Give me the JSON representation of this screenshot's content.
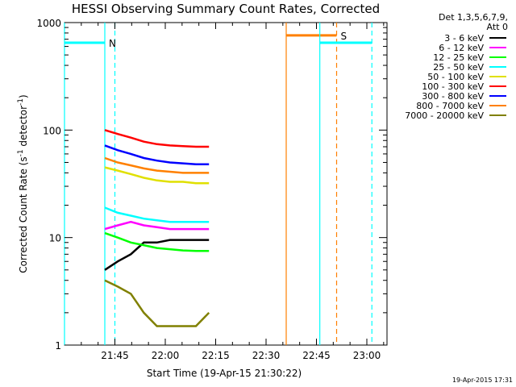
{
  "chart_data": {
    "type": "line",
    "title": "HESSI Observing Summary Count Rates, Corrected",
    "xlabel": "Start Time (19-Apr-15 21:30:22)",
    "ylabel_main": "Corrected Count Rate (s",
    "ylabel_sup1": "-1",
    "ylabel_mid": " detector",
    "ylabel_sup2": "-1",
    "ylabel_end": ")",
    "y_scale": "log",
    "ylim": [
      1,
      1000
    ],
    "xlim_minutes_from_2130": [
      0,
      96
    ],
    "x_ticks": [
      {
        "label": "21:45",
        "m": 15
      },
      {
        "label": "22:00",
        "m": 30
      },
      {
        "label": "22:15",
        "m": 45
      },
      {
        "label": "22:30",
        "m": 60
      },
      {
        "label": "22:45",
        "m": 75
      },
      {
        "label": "23:00",
        "m": 90
      }
    ],
    "y_ticks": [
      {
        "label": "1000",
        "v": 1000
      },
      {
        "label": "100",
        "v": 100
      },
      {
        "label": "10",
        "v": 10
      },
      {
        "label": "1",
        "v": 1
      }
    ],
    "legend_header_line1": "Det 1,3,5,6,7,9,",
    "legend_header_line2": "Att 0",
    "legend_position": "outside-right",
    "data_window_minutes": [
      12,
      43
    ],
    "series": [
      {
        "name": "3 - 6 keV",
        "color": "#000000",
        "values": [
          5,
          6,
          7,
          9,
          9,
          9.5,
          9.5,
          9.5,
          9.5
        ]
      },
      {
        "name": "6 - 12 keV",
        "color": "#ff00ff",
        "values": [
          12,
          13,
          14,
          13,
          12.5,
          12,
          12,
          12,
          12
        ]
      },
      {
        "name": "12 - 25 keV",
        "color": "#00ff00",
        "values": [
          11,
          10,
          9,
          8.5,
          8,
          7.8,
          7.6,
          7.5,
          7.5
        ]
      },
      {
        "name": "25 - 50 keV",
        "color": "#00ffff",
        "values": [
          19,
          17,
          16,
          15,
          14.5,
          14,
          14,
          14,
          14
        ]
      },
      {
        "name": "50 - 100 keV",
        "color": "#e0e000",
        "values": [
          45,
          42,
          39,
          36,
          34,
          33,
          33,
          32,
          32
        ]
      },
      {
        "name": "100 - 300 keV",
        "color": "#ff0000",
        "values": [
          100,
          92,
          85,
          78,
          74,
          72,
          71,
          70,
          70
        ]
      },
      {
        "name": "300 - 800 keV",
        "color": "#0000ff",
        "values": [
          72,
          65,
          60,
          55,
          52,
          50,
          49,
          48,
          48
        ]
      },
      {
        "name": "800 - 7000 keV",
        "color": "#ff8000",
        "values": [
          55,
          50,
          47,
          44,
          42,
          41,
          40,
          40,
          40
        ]
      },
      {
        "name": "7000 - 20000 keV",
        "color": "#808000",
        "values": [
          4,
          3.5,
          3,
          2,
          1.5,
          1.5,
          1.5,
          1.5,
          2
        ]
      }
    ],
    "flags": [
      {
        "label": "N",
        "color": "#00ffff",
        "line": [
          0,
          12
        ],
        "bar_value": 650,
        "solid_at": [
          0,
          12
        ],
        "dashed_at": [
          15
        ]
      },
      {
        "label": "S",
        "color": "#ff8000",
        "line": [
          66,
          81
        ],
        "bar_value": 760,
        "solid_at": [
          66
        ],
        "dashed_at": [
          81
        ]
      },
      {
        "label": "",
        "color": "#00ffff",
        "line": [
          76,
          91.5
        ],
        "bar_value": 650,
        "solid_at": [
          76
        ],
        "dashed_at": [
          91.5
        ]
      }
    ]
  },
  "footer_stamp": "19-Apr-2015 17:31"
}
